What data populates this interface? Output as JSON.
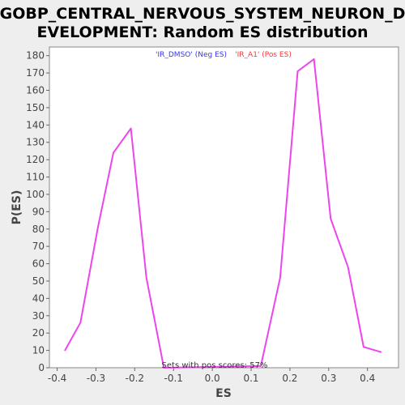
{
  "chart_data": {
    "type": "line",
    "title_line1": "GOBP_CENTRAL_NERVOUS_SYSTEM_NEURON_D",
    "title_line2": "EVELOPMENT: Random ES distribution",
    "xlabel": "ES",
    "ylabel": "P(ES)",
    "xlim": [
      -0.42,
      0.48
    ],
    "ylim": [
      0,
      185
    ],
    "x_ticks": [
      -0.4,
      -0.3,
      -0.2,
      -0.1,
      0.0,
      0.1,
      0.2,
      0.3,
      0.4
    ],
    "x_tick_labels": [
      "-0.4",
      "-0.3",
      "-0.2",
      "-0.1",
      "0.0",
      "0.1",
      "0.2",
      "0.3",
      "0.4"
    ],
    "y_ticks": [
      0,
      10,
      20,
      30,
      40,
      50,
      60,
      70,
      80,
      90,
      100,
      110,
      120,
      130,
      140,
      150,
      160,
      170,
      180
    ],
    "y_tick_labels": [
      "0",
      "10",
      "20",
      "30",
      "40",
      "50",
      "60",
      "70",
      "80",
      "90",
      "100",
      "110",
      "120",
      "130",
      "140",
      "150",
      "160",
      "170",
      "180"
    ],
    "legend": [
      {
        "label": "'IR_DMSO' (Neg ES)",
        "color": "#3333ff"
      },
      {
        "label": "'IR_A1' (Pos ES)",
        "color": "#ff3333"
      }
    ],
    "legend_position": "top-center",
    "annotation": "Sets with pos scores: 57%",
    "grid": false,
    "series": [
      {
        "color": "#ee44ee",
        "x": [
          -0.38,
          -0.34,
          -0.295,
          -0.255,
          -0.21,
          -0.17,
          -0.125,
          0.125,
          0.175,
          0.22,
          0.262,
          0.305,
          0.35,
          0.39,
          0.435
        ],
        "y": [
          10,
          26,
          81,
          124,
          138,
          52,
          0,
          1,
          52,
          171,
          178,
          86,
          58,
          12,
          9
        ]
      }
    ]
  },
  "colors": {
    "background": "#eeeeee",
    "plot_background": "#ffffff",
    "line": "#ee44ee"
  }
}
